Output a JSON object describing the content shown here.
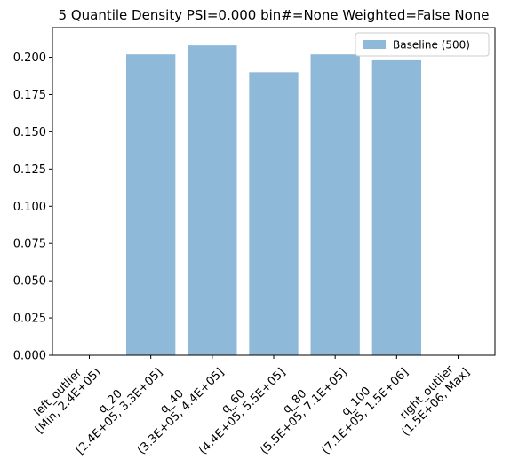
{
  "chart_data": {
    "type": "bar",
    "title": "5 Quantile Density PSI=0.000 bin#=None Weighted=False None",
    "xlabel": "",
    "ylabel": "",
    "categories": [
      [
        "left_outlier",
        "[Min, 2.4E+05)"
      ],
      [
        "q_20",
        "[2.4E+05, 3.3E+05]"
      ],
      [
        "q_40",
        "(3.3E+05, 4.4E+05]"
      ],
      [
        "q_60",
        "(4.4E+05, 5.5E+05]"
      ],
      [
        "q_80",
        "(5.5E+05, 7.1E+05]"
      ],
      [
        "q_100",
        "(7.1E+05, 1.5E+06]"
      ],
      [
        "right_outlier",
        "(1.5E+06, Max]"
      ]
    ],
    "series": [
      {
        "name": "Baseline (500)",
        "values": [
          0.0,
          0.202,
          0.208,
          0.19,
          0.202,
          0.198,
          0.0
        ],
        "color": "#8fb9d9"
      }
    ],
    "ylim": [
      0,
      0.22
    ],
    "yticks": [
      "0.000",
      "0.025",
      "0.050",
      "0.075",
      "0.100",
      "0.125",
      "0.150",
      "0.175",
      "0.200"
    ],
    "ytick_values": [
      0,
      0.025,
      0.05,
      0.075,
      0.1,
      0.125,
      0.15,
      0.175,
      0.2
    ],
    "legend_placement": "top-right",
    "grid": false
  }
}
